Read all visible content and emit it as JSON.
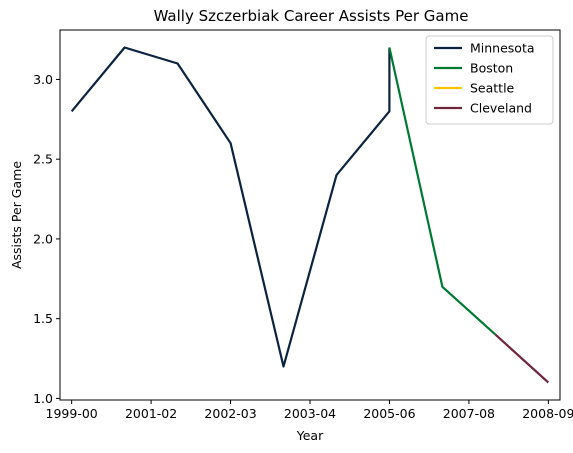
{
  "chart_data": {
    "type": "line",
    "title": "Wally Szczerbiak Career Assists Per Game",
    "xlabel": "Year",
    "ylabel": "Assists Per Game",
    "x_ticks": [
      "1999-00",
      "2001-02",
      "2002-03",
      "2003-04",
      "2005-06",
      "2007-08",
      "2008-09"
    ],
    "xlim": [
      1999.0,
      2008.0
    ],
    "ylim": [
      0.99,
      3.31
    ],
    "y_ticks": [
      1.0,
      1.5,
      2.0,
      2.5,
      3.0
    ],
    "y_tick_labels": [
      "1.0",
      "1.5",
      "2.0",
      "2.5",
      "3.0"
    ],
    "grid": false,
    "legend_position": "top-right",
    "series": [
      {
        "name": "Minnesota",
        "color": "#0c2340",
        "points": [
          {
            "x": 1999.0,
            "y": 2.8
          },
          {
            "x": 2000.0,
            "y": 3.2
          },
          {
            "x": 2001.0,
            "y": 3.1
          },
          {
            "x": 2002.0,
            "y": 2.6
          },
          {
            "x": 2003.0,
            "y": 1.2
          },
          {
            "x": 2004.0,
            "y": 2.4
          },
          {
            "x": 2005.0,
            "y": 2.8
          },
          {
            "x": 2005.0,
            "y": 3.2
          }
        ]
      },
      {
        "name": "Boston",
        "color": "#007a33",
        "points": [
          {
            "x": 2005.0,
            "y": 3.2
          },
          {
            "x": 2006.0,
            "y": 1.7
          },
          {
            "x": 2007.0,
            "y": 1.4
          }
        ]
      },
      {
        "name": "Seattle",
        "color": "#ffc200",
        "points": []
      },
      {
        "name": "Cleveland",
        "color": "#6f263d",
        "points": [
          {
            "x": 2007.0,
            "y": 1.4
          },
          {
            "x": 2008.0,
            "y": 1.1
          }
        ]
      }
    ]
  }
}
